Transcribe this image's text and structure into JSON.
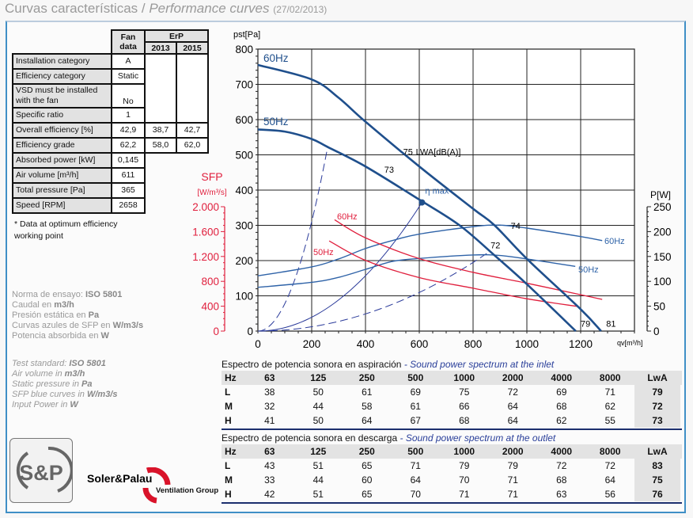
{
  "header": {
    "title_es": "Curvas características",
    "separator": " / ",
    "title_en": "Performance curves",
    "date": "(27/02/2013)"
  },
  "fan_table": {
    "headers": {
      "fan_data": "Fan data",
      "erp": "ErP",
      "y2013": "2013",
      "y2015": "2015"
    },
    "rows": [
      {
        "label": "Installation category",
        "value": "A"
      },
      {
        "label": "Efficiency category",
        "value": "Static"
      },
      {
        "label": "VSD must be installed with the fan",
        "value": "No"
      },
      {
        "label": "Specific ratio",
        "value": "1"
      },
      {
        "label": "Overall efficiency [%]",
        "value": "42,9",
        "erp2013": "38,7",
        "erp2015": "42,7"
      },
      {
        "label": "Efficiency grade",
        "value": "62,2",
        "erp2013": "58,0",
        "erp2015": "62,0"
      },
      {
        "label": "Absorbed power [kW]",
        "value": "0,145"
      },
      {
        "label": "Air volume [m³/h]",
        "value": "611"
      },
      {
        "label": "Total pressure [Pa]",
        "value": "365"
      },
      {
        "label": "Speed [RPM]",
        "value": "2658"
      }
    ],
    "note": "* Data at optimum efficiency working point"
  },
  "info_es": [
    [
      "Norma de ensayo: ",
      "ISO 5801"
    ],
    [
      "Caudal en ",
      "m3/h"
    ],
    [
      "Presión estática en ",
      "Pa"
    ],
    [
      "Curvas azules de SFP en ",
      "W/m3/s"
    ],
    [
      "Potencia absorbida en ",
      "W"
    ]
  ],
  "info_en": [
    [
      "Test standard: ",
      "ISO 5801"
    ],
    [
      "Air volume in ",
      "m3/h"
    ],
    [
      "Static pressure in ",
      "Pa"
    ],
    [
      "SFP blue curves in ",
      "W/m3/s"
    ],
    [
      "Input Power in ",
      "W"
    ]
  ],
  "chart_data": {
    "type": "line",
    "xlabel": "qv[m³/h]",
    "ylabel": "pst[Pa]",
    "y2label": "P[W]",
    "sfp_label": "SFP",
    "sfp_unit": "[W/m³/s]",
    "xlim": [
      0,
      1400
    ],
    "ylim": [
      0,
      800
    ],
    "sfp_lim": [
      0,
      2000
    ],
    "power_lim": [
      0,
      250
    ],
    "grid": true,
    "x_ticks": [
      "0",
      "200",
      "400",
      "600",
      "800",
      "1000",
      "1200"
    ],
    "y_ticks": [
      "0",
      "100",
      "200",
      "300",
      "400",
      "500",
      "600",
      "700",
      "800"
    ],
    "sfp_ticks": [
      "0",
      "400",
      "800",
      "1.200",
      "1.600",
      "2.000"
    ],
    "power_ticks": [
      "0",
      "50",
      "100",
      "150",
      "200",
      "250"
    ],
    "colors": {
      "pressure": "#1f4f8c",
      "power": "#2f63a8",
      "sfp": "#e01f3d",
      "system": "#2a3a9a"
    },
    "pressure_curves": [
      {
        "name": "60Hz",
        "points": [
          [
            0,
            755
          ],
          [
            200,
            714
          ],
          [
            300,
            662
          ],
          [
            400,
            594
          ],
          [
            600,
            467
          ],
          [
            800,
            347
          ],
          [
            880,
            300
          ],
          [
            1000,
            205
          ],
          [
            1200,
            62
          ],
          [
            1276,
            0
          ]
        ]
      },
      {
        "name": "50Hz",
        "points": [
          [
            0,
            572
          ],
          [
            100,
            566
          ],
          [
            200,
            545
          ],
          [
            260,
            522
          ],
          [
            400,
            467
          ],
          [
            600,
            373
          ],
          [
            750,
            300
          ],
          [
            884,
            212
          ],
          [
            1000,
            133
          ],
          [
            1182,
            0
          ]
        ]
      }
    ],
    "power_curves": [
      {
        "name": "60Hz",
        "points": [
          [
            0,
            111
          ],
          [
            200,
            129
          ],
          [
            300,
            145
          ],
          [
            400,
            166
          ],
          [
            500,
            182
          ],
          [
            600,
            195
          ],
          [
            800,
            210
          ],
          [
            900,
            213
          ],
          [
            1000,
            207
          ],
          [
            1200,
            190
          ],
          [
            1280,
            182
          ]
        ]
      },
      {
        "name": "50Hz",
        "points": [
          [
            0,
            88
          ],
          [
            200,
            98
          ],
          [
            300,
            108
          ],
          [
            400,
            124
          ],
          [
            500,
            140
          ],
          [
            600,
            146
          ],
          [
            800,
            153
          ],
          [
            900,
            152
          ],
          [
            1000,
            145
          ],
          [
            1180,
            130
          ]
        ]
      }
    ],
    "sfp_curves": [
      {
        "name": "60Hz",
        "points": [
          [
            285,
            1790
          ],
          [
            400,
            1500
          ],
          [
            600,
            1165
          ],
          [
            800,
            945
          ],
          [
            1000,
            770
          ],
          [
            1200,
            585
          ],
          [
            1280,
            510
          ]
        ]
      },
      {
        "name": "50Hz",
        "points": [
          [
            265,
            1450
          ],
          [
            400,
            1137
          ],
          [
            600,
            860
          ],
          [
            800,
            690
          ],
          [
            1000,
            520
          ],
          [
            1190,
            395
          ]
        ]
      }
    ],
    "system_curves": [
      {
        "end": [
          260,
          525
        ],
        "dashed": true
      },
      {
        "end": [
          610,
          365
        ],
        "dashed": false
      },
      {
        "end": [
          860,
          225
        ],
        "dashed": true
      }
    ],
    "eta_max": {
      "label": "η max",
      "point": [
        610,
        365
      ]
    },
    "noise_labels": [
      {
        "text": "75",
        "unit": "LWA[dB(A)]",
        "at": [
          540,
          500
        ]
      },
      {
        "text": "73",
        "at": [
          470,
          450
        ]
      },
      {
        "text": "74",
        "at": [
          940,
          290
        ]
      },
      {
        "text": "72",
        "at": [
          865,
          235
        ]
      },
      {
        "text": "79",
        "at": [
          1200,
          12
        ]
      },
      {
        "text": "81",
        "at": [
          1295,
          12
        ]
      }
    ]
  },
  "sound_inlet": {
    "title_es": "Espectro de potencia sonora en aspiración",
    "title_en": " - Sound power spectrum at the inlet",
    "header": [
      "Hz",
      "63",
      "125",
      "250",
      "500",
      "1000",
      "2000",
      "4000",
      "8000",
      "LwA"
    ],
    "rows": [
      [
        "L",
        "38",
        "50",
        "61",
        "69",
        "75",
        "72",
        "69",
        "71",
        "79"
      ],
      [
        "M",
        "32",
        "44",
        "58",
        "61",
        "66",
        "64",
        "68",
        "62",
        "72"
      ],
      [
        "H",
        "41",
        "50",
        "64",
        "67",
        "68",
        "64",
        "62",
        "55",
        "73"
      ]
    ]
  },
  "sound_outlet": {
    "title_es": "Espectro de potencia sonora en descarga",
    "title_en": " - Sound power spectrum at the outlet",
    "header": [
      "Hz",
      "63",
      "125",
      "250",
      "500",
      "1000",
      "2000",
      "4000",
      "8000",
      "LwA"
    ],
    "rows": [
      [
        "L",
        "43",
        "51",
        "65",
        "71",
        "79",
        "79",
        "72",
        "72",
        "83"
      ],
      [
        "M",
        "33",
        "44",
        "60",
        "64",
        "70",
        "71",
        "68",
        "64",
        "75"
      ],
      [
        "H",
        "42",
        "51",
        "65",
        "70",
        "71",
        "71",
        "63",
        "56",
        "76"
      ]
    ]
  },
  "brand": {
    "logo_text": "S&P",
    "name": "Soler&Palau",
    "tagline": "Ventilation Group",
    "accent": "#d9132a"
  }
}
